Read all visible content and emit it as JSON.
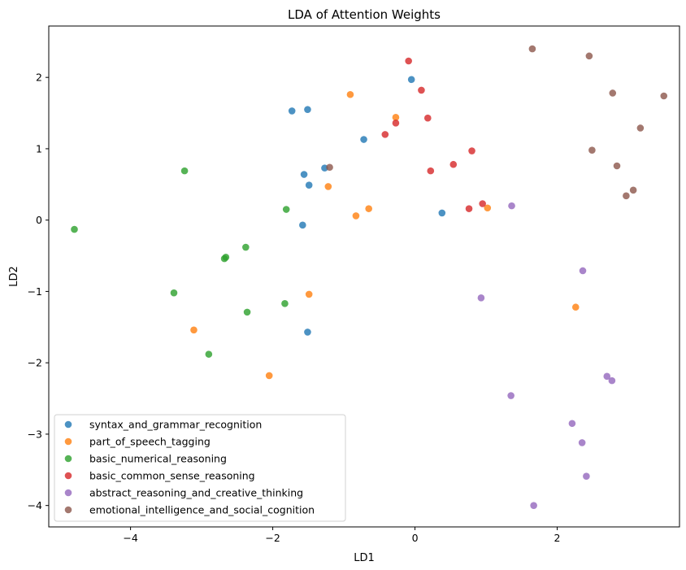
{
  "chart_data": {
    "type": "scatter",
    "title": "LDA of Attention Weights",
    "xlabel": "LD1",
    "ylabel": "LD2",
    "xlim": [
      -5.15,
      3.72
    ],
    "ylim": [
      -4.3,
      2.72
    ],
    "xticks": [
      -4,
      -2,
      0,
      2
    ],
    "yticks": [
      2,
      1,
      0,
      -1,
      -2,
      -3,
      -4
    ],
    "grid": false,
    "legend_position": "lower-left",
    "series": [
      {
        "name": "syntax_and_grammar_recognition",
        "color": "#1f77b4",
        "points": [
          [
            -1.73,
            1.53
          ],
          [
            -1.51,
            1.55
          ],
          [
            -0.05,
            1.97
          ],
          [
            -0.72,
            1.13
          ],
          [
            -1.27,
            0.73
          ],
          [
            -1.56,
            0.64
          ],
          [
            -1.49,
            0.49
          ],
          [
            -1.58,
            -0.07
          ],
          [
            0.38,
            0.1
          ],
          [
            -1.51,
            -1.57
          ]
        ]
      },
      {
        "name": "part_of_speech_tagging",
        "color": "#ff7f0e",
        "points": [
          [
            -0.91,
            1.76
          ],
          [
            -0.27,
            1.44
          ],
          [
            -1.22,
            0.47
          ],
          [
            -0.65,
            0.16
          ],
          [
            -0.83,
            0.06
          ],
          [
            1.02,
            0.17
          ],
          [
            -1.49,
            -1.04
          ],
          [
            -3.11,
            -1.54
          ],
          [
            -2.05,
            -2.18
          ],
          [
            2.26,
            -1.22
          ]
        ]
      },
      {
        "name": "basic_numerical_reasoning",
        "color": "#2ca02c",
        "points": [
          [
            -4.79,
            -0.13
          ],
          [
            -3.24,
            0.69
          ],
          [
            -1.81,
            0.15
          ],
          [
            -2.38,
            -0.38
          ],
          [
            -2.66,
            -0.52
          ],
          [
            -2.68,
            -0.54
          ],
          [
            -3.39,
            -1.02
          ],
          [
            -2.36,
            -1.29
          ],
          [
            -1.83,
            -1.17
          ],
          [
            -2.9,
            -1.88
          ]
        ]
      },
      {
        "name": "basic_common_sense_reasoning",
        "color": "#d62728",
        "points": [
          [
            -0.09,
            2.23
          ],
          [
            0.09,
            1.82
          ],
          [
            -0.27,
            1.36
          ],
          [
            0.18,
            1.43
          ],
          [
            -0.42,
            1.2
          ],
          [
            0.8,
            0.97
          ],
          [
            0.54,
            0.78
          ],
          [
            0.22,
            0.69
          ],
          [
            0.95,
            0.23
          ],
          [
            0.76,
            0.16
          ]
        ]
      },
      {
        "name": "abstract_reasoning_and_creative_thinking",
        "color": "#9467bd",
        "points": [
          [
            1.36,
            0.2
          ],
          [
            2.36,
            -0.71
          ],
          [
            0.93,
            -1.09
          ],
          [
            1.35,
            -2.46
          ],
          [
            2.7,
            -2.19
          ],
          [
            2.77,
            -2.25
          ],
          [
            2.21,
            -2.85
          ],
          [
            2.35,
            -3.12
          ],
          [
            2.41,
            -3.59
          ],
          [
            1.67,
            -4.0
          ]
        ]
      },
      {
        "name": "emotional_intelligence_and_social_cognition",
        "color": "#8c564b",
        "points": [
          [
            1.65,
            2.4
          ],
          [
            2.45,
            2.3
          ],
          [
            2.78,
            1.78
          ],
          [
            3.5,
            1.74
          ],
          [
            3.17,
            1.29
          ],
          [
            2.49,
            0.98
          ],
          [
            -1.2,
            0.74
          ],
          [
            2.84,
            0.76
          ],
          [
            3.07,
            0.42
          ],
          [
            2.97,
            0.34
          ]
        ]
      }
    ]
  }
}
